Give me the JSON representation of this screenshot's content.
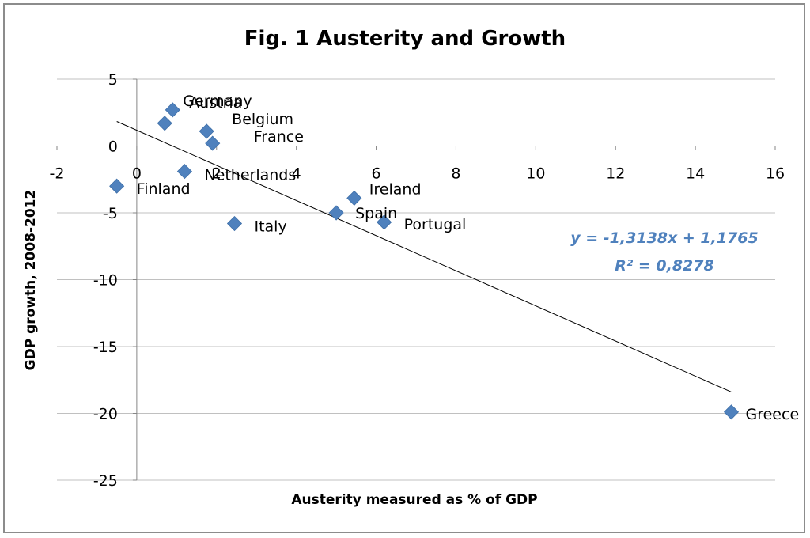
{
  "chart_data": {
    "type": "scatter",
    "title": "Fig. 1 Austerity and Growth",
    "xlabel": "Austerity measured as % of GDP",
    "ylabel": "GDP growth, 2008-2012",
    "xlim": [
      -2,
      16
    ],
    "ylim": [
      -25,
      5
    ],
    "x_ticks": [
      -2,
      0,
      2,
      4,
      6,
      8,
      10,
      12,
      14,
      16
    ],
    "y_ticks": [
      5,
      0,
      -5,
      -10,
      -15,
      -20,
      -25
    ],
    "grid": "horizontal",
    "points": [
      {
        "label": "Germany",
        "x": 0.9,
        "y": 2.7
      },
      {
        "label": "Austria",
        "x": 0.7,
        "y": 1.7
      },
      {
        "label": "Belgium",
        "x": 1.75,
        "y": 1.1
      },
      {
        "label": "France",
        "x": 1.9,
        "y": 0.2
      },
      {
        "label": "Netherlands",
        "x": 1.2,
        "y": -1.9
      },
      {
        "label": "Finland",
        "x": -0.5,
        "y": -3.0
      },
      {
        "label": "Ireland",
        "x": 5.45,
        "y": -3.9
      },
      {
        "label": "Spain",
        "x": 5.0,
        "y": -5.0
      },
      {
        "label": "Portugal",
        "x": 6.2,
        "y": -5.7
      },
      {
        "label": "Italy",
        "x": 2.45,
        "y": -5.8
      },
      {
        "label": "Greece",
        "x": 14.9,
        "y": -19.9
      }
    ],
    "trendline": {
      "type": "linear",
      "slope": -1.3138,
      "intercept": 1.1765,
      "x_range": [
        -0.5,
        14.9
      ],
      "equation": "y = -1,3138x + 1,1765",
      "r_squared": "R² = 0,8278"
    },
    "colors": {
      "marker": "#4f81bd",
      "equation": "#4f81bd",
      "trendline": "#000000",
      "grid": "#c0c0c0"
    }
  }
}
